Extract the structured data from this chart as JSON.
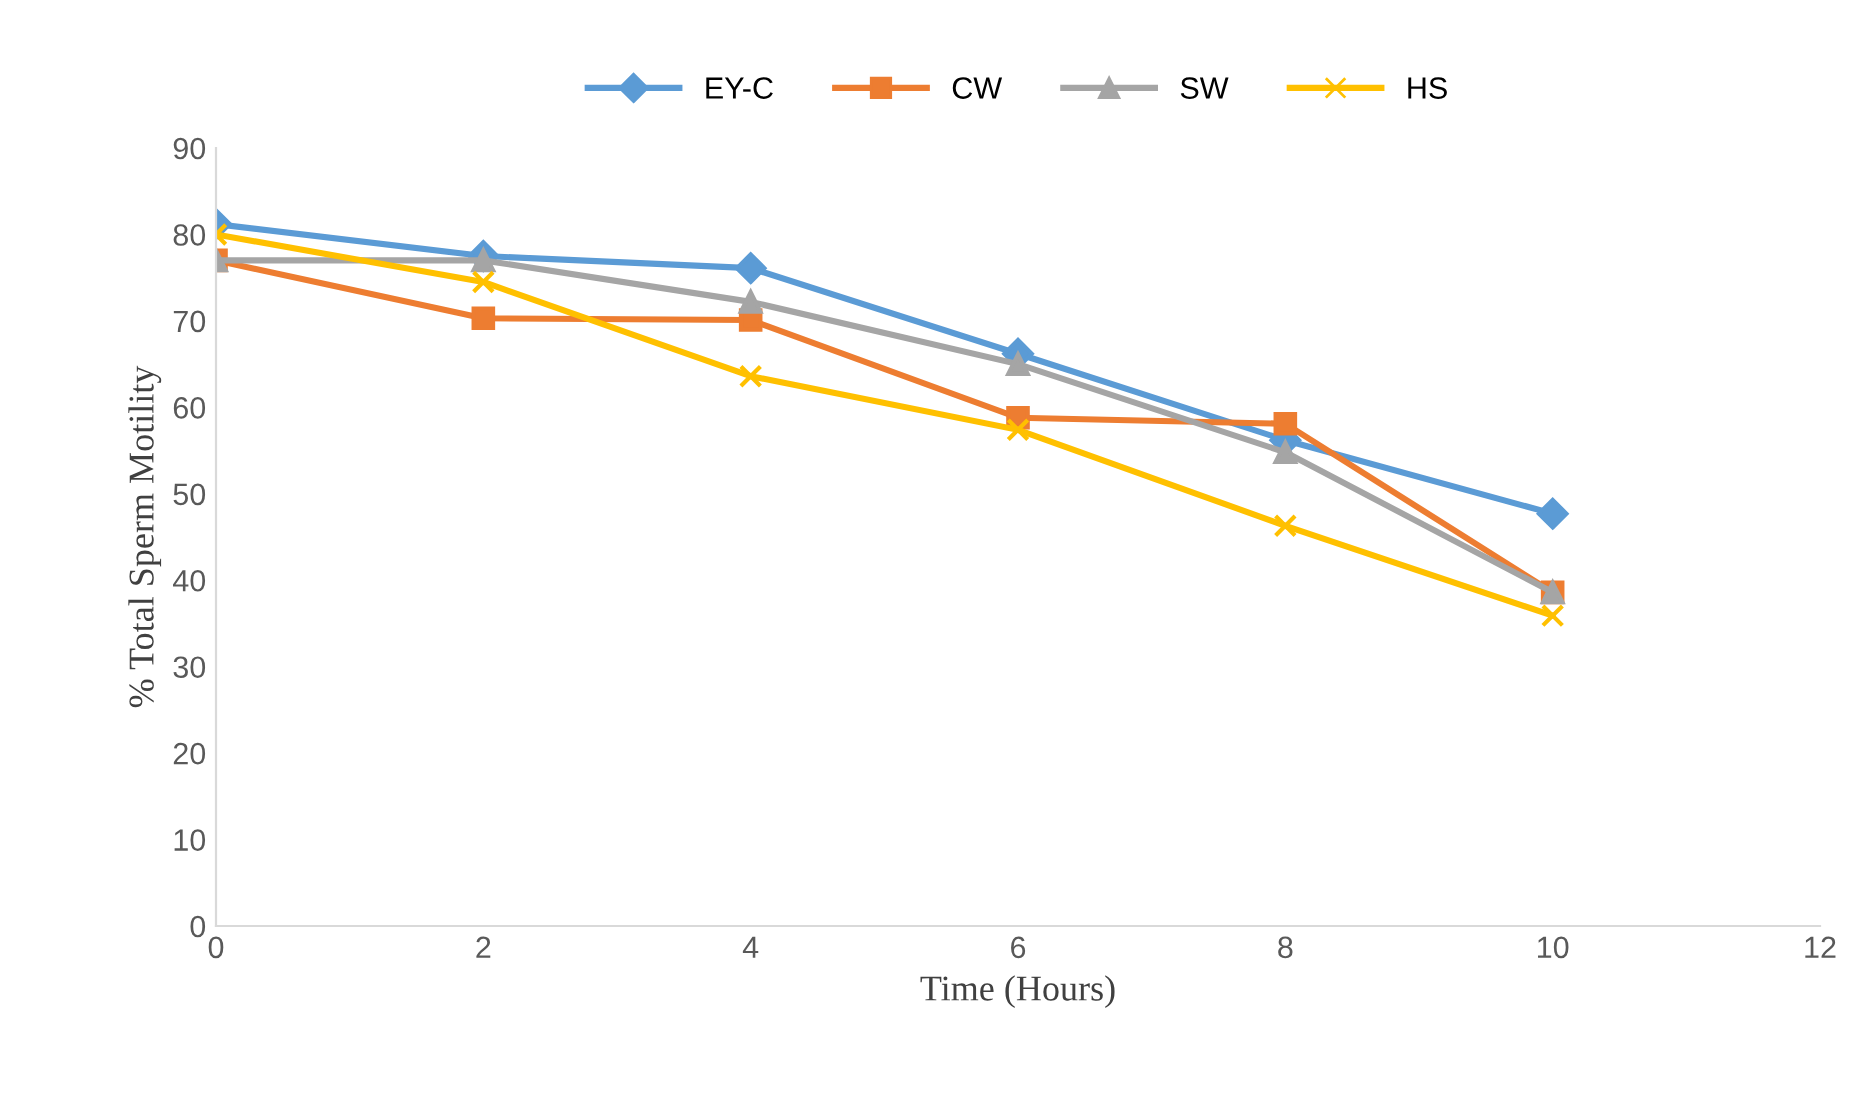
{
  "chart_data": {
    "type": "line",
    "xlabel": "Time (Hours)",
    "ylabel": "% Total Sperm Motility",
    "x": [
      0,
      2,
      4,
      6,
      8,
      10
    ],
    "series": [
      {
        "name": "EY-C",
        "color": "#5b9bd5",
        "marker": "diamond",
        "values": [
          81.2,
          77.5,
          76.1,
          66.2,
          56.2,
          47.7
        ]
      },
      {
        "name": "CW",
        "color": "#ed7d31",
        "marker": "square",
        "values": [
          77,
          70.3,
          70.1,
          58.8,
          58.1,
          38.6
        ]
      },
      {
        "name": "SW",
        "color": "#a5a5a5",
        "marker": "triangle",
        "values": [
          77,
          77,
          72.2,
          65,
          54.8,
          38.6
        ]
      },
      {
        "name": "HS",
        "color": "#ffc000",
        "marker": "cross",
        "values": [
          80,
          74.5,
          63.6,
          57.4,
          46.3,
          35.9
        ]
      }
    ],
    "xlim": [
      0,
      12
    ],
    "xticks": [
      0,
      2,
      4,
      6,
      8,
      10,
      12
    ],
    "ylim": [
      0,
      90
    ],
    "yticks": [
      0,
      10,
      20,
      30,
      40,
      50,
      60,
      70,
      80,
      90
    ],
    "legend": "top",
    "grid": false,
    "line_style": "solid"
  }
}
